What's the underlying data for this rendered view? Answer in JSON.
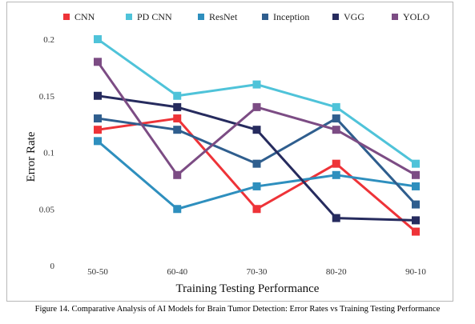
{
  "caption": "Figure 14. Comparative Analysis of AI Models for Brain Tumor Detection: Error Rates vs Training Testing Performance",
  "chart_data": {
    "type": "line",
    "title": "",
    "xlabel": "Training Testing Performance",
    "ylabel": "Error  Rate",
    "categories": [
      "50-50",
      "60-40",
      "70-30",
      "80-20",
      "90-10"
    ],
    "ylim": [
      0,
      0.2
    ],
    "yticks": [
      "0",
      "0.05",
      "0.1",
      "0.15",
      "0.2"
    ],
    "yticks_values": [
      0,
      0.05,
      0.1,
      0.15,
      0.2
    ],
    "grid": false,
    "legend_position": "top",
    "series": [
      {
        "name": "CNN",
        "color": "#ee3338",
        "values": [
          0.12,
          0.13,
          0.05,
          0.09,
          0.03
        ]
      },
      {
        "name": "PD CNN",
        "color": "#4fc3d9",
        "values": [
          0.2,
          0.15,
          0.16,
          0.14,
          0.09
        ]
      },
      {
        "name": "ResNet",
        "color": "#2e8fbe",
        "values": [
          0.11,
          0.05,
          0.07,
          0.08,
          0.07
        ]
      },
      {
        "name": "Inception",
        "color": "#2f5e8e",
        "values": [
          0.13,
          0.12,
          0.09,
          0.13,
          0.054
        ]
      },
      {
        "name": "VGG",
        "color": "#262b5e",
        "values": [
          0.15,
          0.14,
          0.12,
          0.042,
          0.04
        ]
      },
      {
        "name": "YOLO",
        "color": "#7c4c84",
        "values": [
          0.18,
          0.08,
          0.14,
          0.12,
          0.08
        ]
      }
    ]
  }
}
